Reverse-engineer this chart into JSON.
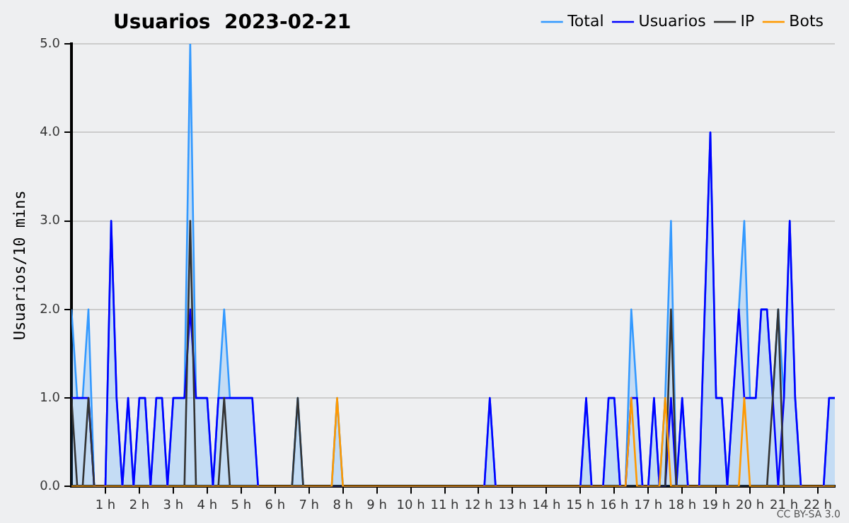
{
  "chart_data": {
    "type": "line",
    "title": "Usuarios  2023-02-21",
    "ylabel": "Usuarios/10 mins",
    "xlim": [
      0,
      22.5
    ],
    "xticks": [
      {
        "value": 1,
        "label": "1 h"
      },
      {
        "value": 2,
        "label": "2 h"
      },
      {
        "value": 3,
        "label": "3 h"
      },
      {
        "value": 4,
        "label": "4 h"
      },
      {
        "value": 5,
        "label": "5 h"
      },
      {
        "value": 6,
        "label": "6 h"
      },
      {
        "value": 7,
        "label": "7 h"
      },
      {
        "value": 8,
        "label": "8 h"
      },
      {
        "value": 9,
        "label": "9 h"
      },
      {
        "value": 10,
        "label": "10 h"
      },
      {
        "value": 11,
        "label": "11 h"
      },
      {
        "value": 12,
        "label": "12 h"
      },
      {
        "value": 13,
        "label": "13 h"
      },
      {
        "value": 14,
        "label": "14 h"
      },
      {
        "value": 15,
        "label": "15 h"
      },
      {
        "value": 16,
        "label": "16 h"
      },
      {
        "value": 17,
        "label": "17 h"
      },
      {
        "value": 18,
        "label": "18 h"
      },
      {
        "value": 19,
        "label": "19 h"
      },
      {
        "value": 20,
        "label": "20 h"
      },
      {
        "value": 21,
        "label": "21 h"
      },
      {
        "value": 22,
        "label": "22 h"
      }
    ],
    "ylim": [
      0,
      5
    ],
    "yticks": [
      {
        "value": 0,
        "label": "0.0"
      },
      {
        "value": 1,
        "label": "1.0"
      },
      {
        "value": 2,
        "label": "2.0"
      },
      {
        "value": 3,
        "label": "3.0"
      },
      {
        "value": 4,
        "label": "4.0"
      },
      {
        "value": 5,
        "label": "5.0"
      }
    ],
    "grid": "y",
    "legend": "top right",
    "marker": "none",
    "annotations": [
      "CC BY-SA 3.0"
    ],
    "series": [
      {
        "name": "Total",
        "type": "area",
        "color": "#3399ff",
        "x": [
          0,
          0.17,
          0.33,
          0.5,
          0.67,
          1,
          1.17,
          1.33,
          1.5,
          1.67,
          1.83,
          2,
          2.17,
          2.33,
          2.5,
          2.67,
          2.83,
          3,
          3.33,
          3.5,
          3.67,
          4,
          4.17,
          4.33,
          4.5,
          4.67,
          5.33,
          5.5,
          6.5,
          6.67,
          6.83,
          7.67,
          7.83,
          8,
          12.17,
          12.33,
          12.5,
          15,
          15.17,
          15.33,
          15.67,
          15.83,
          16,
          16.17,
          16.33,
          16.5,
          16.67,
          16.83,
          17,
          17.17,
          17.33,
          17.5,
          17.67,
          17.83,
          18,
          18.17,
          18.5,
          18.83,
          19,
          19.17,
          19.33,
          19.5,
          19.67,
          19.83,
          20,
          20.17,
          20.33,
          20.5,
          20.67,
          20.83,
          21,
          21.17,
          21.33,
          21.5,
          22.17,
          22.33,
          22.5
        ],
        "values": [
          2,
          1,
          1,
          2,
          0,
          0,
          3,
          1,
          0,
          1,
          0,
          1,
          1,
          0,
          1,
          1,
          0,
          1,
          1,
          5,
          1,
          1,
          0,
          1,
          2,
          1,
          1,
          0,
          0,
          1,
          0,
          0,
          1,
          0,
          0,
          1,
          0,
          0,
          1,
          0,
          0,
          1,
          1,
          0,
          0,
          2,
          1,
          0,
          0,
          1,
          0,
          1,
          3,
          0,
          1,
          0,
          0,
          4,
          1,
          1,
          0,
          1,
          2,
          3,
          1,
          1,
          2,
          2,
          1,
          2,
          1,
          3,
          1,
          0,
          0,
          1,
          1
        ]
      },
      {
        "name": "Usuarios",
        "color": "#0000ff",
        "x": [
          0,
          0.5,
          0.67,
          1,
          1.17,
          1.33,
          1.5,
          1.67,
          1.83,
          2,
          2.17,
          2.33,
          2.5,
          2.67,
          2.83,
          3,
          3.33,
          3.5,
          3.67,
          4,
          4.17,
          4.33,
          5.33,
          5.5,
          12.17,
          12.33,
          12.5,
          15,
          15.17,
          15.33,
          15.67,
          15.83,
          16,
          16.17,
          16.33,
          16.5,
          16.67,
          16.83,
          17,
          17.17,
          17.33,
          17.5,
          17.67,
          17.83,
          18,
          18.17,
          18.5,
          18.83,
          19,
          19.17,
          19.33,
          19.5,
          19.67,
          19.83,
          20.17,
          20.33,
          20.5,
          20.67,
          20.83,
          21,
          21.17,
          21.33,
          21.5,
          22.17,
          22.33,
          22.5
        ],
        "values": [
          1,
          1,
          0,
          0,
          3,
          1,
          0,
          1,
          0,
          1,
          1,
          0,
          1,
          1,
          0,
          1,
          1,
          2,
          1,
          1,
          0,
          1,
          1,
          0,
          0,
          1,
          0,
          0,
          1,
          0,
          0,
          1,
          1,
          0,
          0,
          1,
          1,
          0,
          0,
          1,
          0,
          0,
          1,
          0,
          1,
          0,
          0,
          4,
          1,
          1,
          0,
          1,
          2,
          1,
          1,
          2,
          2,
          1,
          0,
          1,
          3,
          1,
          0,
          0,
          1,
          1
        ]
      },
      {
        "name": "IP",
        "color": "#333333",
        "x": [
          0,
          0.17,
          0.33,
          0.5,
          0.67,
          3.33,
          3.5,
          3.67,
          4.33,
          4.5,
          4.67,
          6.5,
          6.67,
          6.83,
          17.5,
          17.67,
          17.83,
          20.5,
          20.67,
          20.83,
          21,
          22.5
        ],
        "values": [
          1,
          0,
          0,
          1,
          0,
          0,
          3,
          0,
          0,
          1,
          0,
          0,
          1,
          0,
          0,
          2,
          0,
          0,
          1,
          2,
          0,
          0
        ]
      },
      {
        "name": "Bots",
        "color": "#ff9900",
        "x": [
          0,
          7.67,
          7.83,
          8,
          16.33,
          16.5,
          16.67,
          17.33,
          17.5,
          17.67,
          19.67,
          19.83,
          20,
          22.5
        ],
        "values": [
          0,
          0,
          1,
          0,
          0,
          1,
          0,
          0,
          1,
          0,
          0,
          1,
          0,
          0
        ]
      }
    ]
  }
}
